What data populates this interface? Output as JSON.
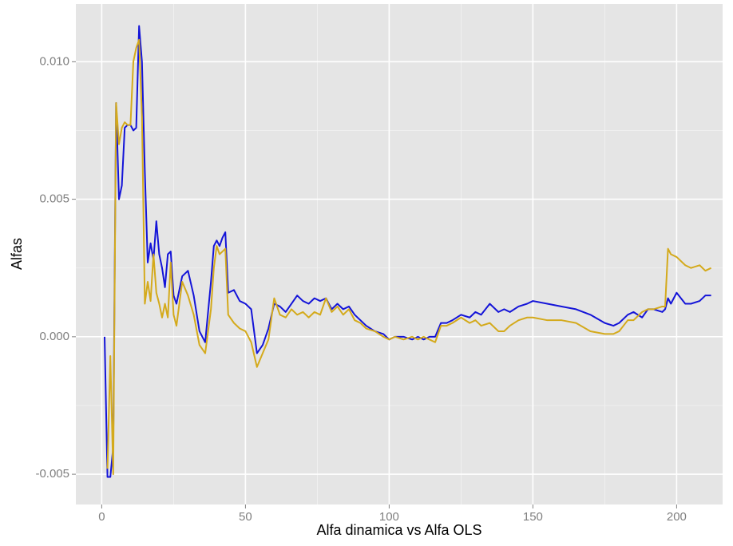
{
  "chart_data": {
    "type": "line",
    "xlabel": "Alfa dinamica vs Alfa OLS",
    "ylabel": "Alfas",
    "x": [
      1,
      2,
      3,
      4,
      5,
      6,
      7,
      8,
      9,
      10,
      11,
      12,
      13,
      14,
      15,
      16,
      17,
      18,
      19,
      20,
      21,
      22,
      23,
      24,
      25,
      26,
      28,
      30,
      32,
      34,
      36,
      38,
      39,
      40,
      41,
      42,
      43,
      44,
      46,
      48,
      50,
      52,
      54,
      56,
      58,
      60,
      62,
      64,
      66,
      68,
      70,
      72,
      74,
      76,
      78,
      80,
      82,
      84,
      86,
      88,
      90,
      92,
      95,
      98,
      100,
      102,
      105,
      108,
      110,
      112,
      114,
      116,
      118,
      120,
      122,
      125,
      128,
      130,
      132,
      135,
      138,
      140,
      142,
      145,
      148,
      150,
      155,
      160,
      165,
      170,
      175,
      178,
      180,
      183,
      185,
      188,
      190,
      192,
      195,
      196,
      197,
      198,
      200,
      203,
      205,
      208,
      210,
      212
    ],
    "series": [
      {
        "color": "#1414d8",
        "values": [
          0.0,
          -0.0051,
          -0.0051,
          -0.004,
          0.0085,
          0.005,
          0.0055,
          0.0076,
          0.0077,
          0.0077,
          0.0075,
          0.0076,
          0.0113,
          0.01,
          0.006,
          0.0027,
          0.0034,
          0.0028,
          0.0042,
          0.003,
          0.0025,
          0.0018,
          0.003,
          0.0031,
          0.0015,
          0.0012,
          0.0022,
          0.0024,
          0.0015,
          0.0002,
          -0.0002,
          0.002,
          0.0033,
          0.0035,
          0.0033,
          0.0036,
          0.0038,
          0.0016,
          0.0017,
          0.0013,
          0.0012,
          0.001,
          -0.0006,
          -0.0003,
          0.0003,
          0.0012,
          0.0011,
          0.0009,
          0.0012,
          0.0015,
          0.0013,
          0.0012,
          0.0014,
          0.0013,
          0.0014,
          0.001,
          0.0012,
          0.001,
          0.0011,
          0.0008,
          0.0006,
          0.0004,
          0.0002,
          0.0001,
          -0.0001,
          0.0,
          0.0,
          -0.0001,
          0.0,
          -0.0001,
          0.0,
          0.0,
          0.0005,
          0.0005,
          0.0006,
          0.0008,
          0.0007,
          0.0009,
          0.0008,
          0.0012,
          0.0009,
          0.001,
          0.0009,
          0.0011,
          0.0012,
          0.0013,
          0.0012,
          0.0011,
          0.001,
          0.0008,
          0.0005,
          0.0004,
          0.0005,
          0.0008,
          0.0009,
          0.0007,
          0.001,
          0.001,
          0.0009,
          0.001,
          0.0014,
          0.0012,
          0.0016,
          0.0012,
          0.0012,
          0.0013,
          0.0015,
          0.0015
        ]
      },
      {
        "color": "#d4aa1c",
        "values": [
          null,
          -0.0048,
          -0.0007,
          -0.005,
          0.0085,
          0.007,
          0.0076,
          0.0078,
          0.0077,
          0.0077,
          0.01,
          0.0105,
          0.0108,
          0.008,
          0.0012,
          0.002,
          0.0013,
          0.003,
          0.0016,
          0.0012,
          0.0007,
          0.0012,
          0.0007,
          0.0027,
          0.0008,
          0.0004,
          0.002,
          0.0015,
          0.0008,
          -0.0003,
          -0.0006,
          0.001,
          0.0025,
          0.0033,
          0.003,
          0.0031,
          0.0032,
          0.0008,
          0.0005,
          0.0003,
          0.0002,
          -0.0002,
          -0.0011,
          -0.0006,
          -0.0001,
          0.0014,
          0.0008,
          0.0007,
          0.001,
          0.0008,
          0.0009,
          0.0007,
          0.0009,
          0.0008,
          0.0014,
          0.0009,
          0.0011,
          0.0008,
          0.001,
          0.0006,
          0.0005,
          0.0003,
          0.0002,
          0.0,
          -0.0001,
          0.0,
          -0.0001,
          0.0,
          -0.0001,
          0.0,
          -0.0001,
          -0.0002,
          0.0004,
          0.0004,
          0.0005,
          0.0007,
          0.0005,
          0.0006,
          0.0004,
          0.0005,
          0.0002,
          0.0002,
          0.0004,
          0.0006,
          0.0007,
          0.0007,
          0.0006,
          0.0006,
          0.0005,
          0.0002,
          0.0001,
          0.0001,
          0.0002,
          0.0006,
          0.0006,
          0.0009,
          0.001,
          0.001,
          0.0011,
          0.0011,
          0.0032,
          0.003,
          0.0029,
          0.0026,
          0.0025,
          0.0026,
          0.0024,
          0.0025
        ]
      }
    ],
    "xlim": [
      -9,
      216
    ],
    "xticks": [
      0,
      50,
      100,
      150,
      200
    ],
    "ylim": [
      -0.0061,
      0.0121
    ],
    "yticks": [
      {
        "value": -0.005,
        "label": "-0.005"
      },
      {
        "value": 0,
        "label": "0.000"
      },
      {
        "value": 0.005,
        "label": "0.005"
      },
      {
        "value": 0.01,
        "label": "0.010"
      }
    ],
    "grid": true
  }
}
